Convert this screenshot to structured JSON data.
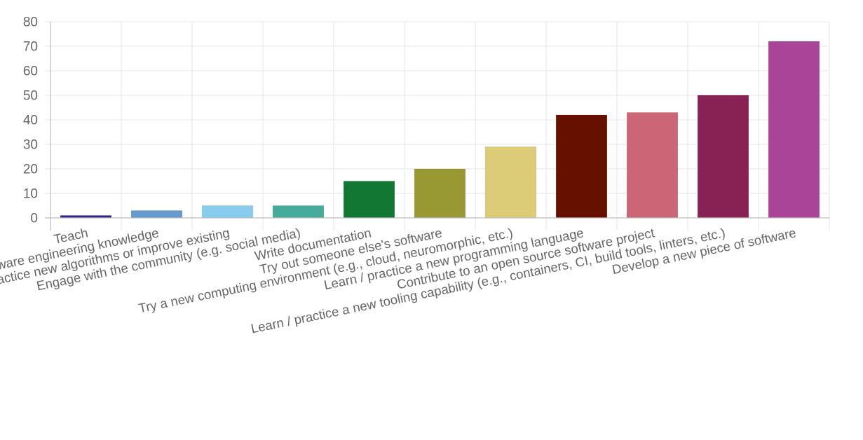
{
  "chart_data": {
    "type": "bar",
    "title": "",
    "xlabel": "",
    "ylabel": "",
    "ylim": [
      0,
      80
    ],
    "yticks": [
      0,
      10,
      20,
      30,
      40,
      50,
      60,
      70,
      80
    ],
    "grid": true,
    "legend": "none",
    "categories": [
      "Teach",
      "Learn / practice software engineering knowledge",
      "Learn / practice new algorithms or improve existing",
      "Engage with the community (e.g. social media)",
      "Write documentation",
      "Try out someone else's software",
      "Try a new computing environment (e.g., cloud, neuromorphic, etc.)",
      "Learn / practice a new programming language",
      "Contribute to an open source software project",
      "Learn / practice a new tooling capability (e.g., containers, CI, build tools, linters, etc.)",
      "Develop a new piece of software"
    ],
    "values": [
      1,
      3,
      5,
      5,
      15,
      20,
      29,
      42,
      43,
      50,
      72
    ],
    "colors": [
      "#332288",
      "#6699cc",
      "#88ccee",
      "#44aa99",
      "#117733",
      "#999933",
      "#ddcc77",
      "#661100",
      "#cc6677",
      "#882255",
      "#aa4499"
    ]
  }
}
